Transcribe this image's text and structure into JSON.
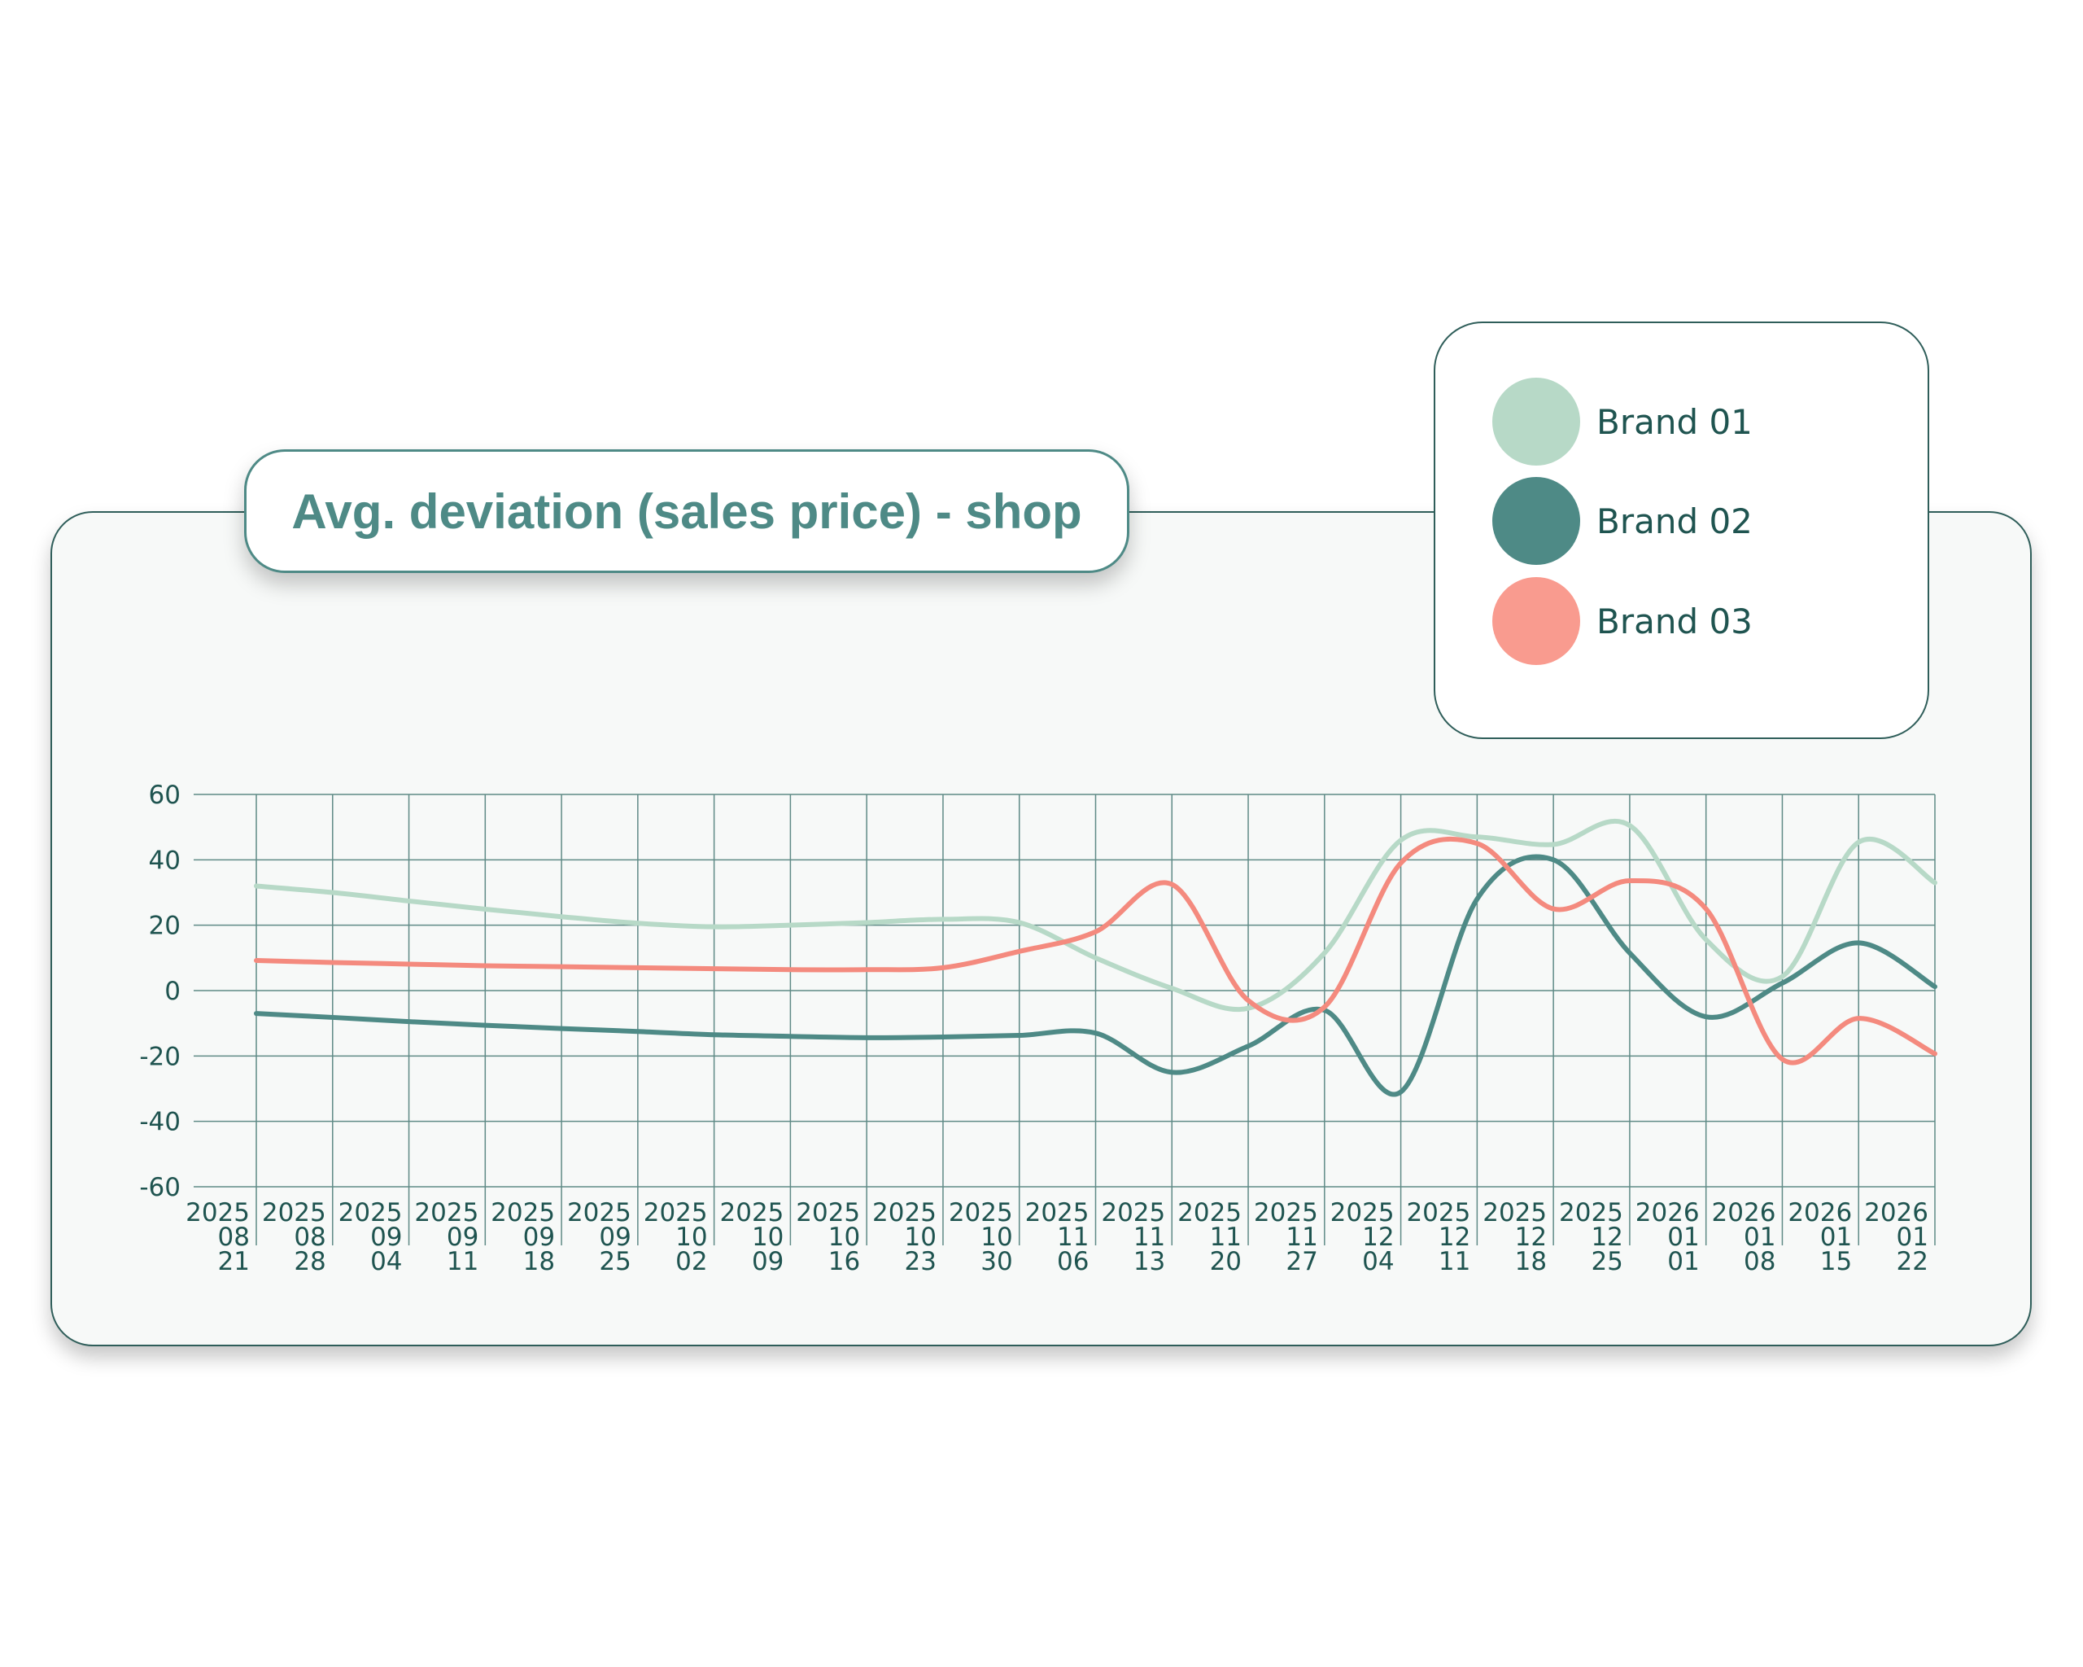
{
  "chart_data": {
    "type": "line",
    "title": "Avg. deviation (sales price) - shop",
    "xlabel": "",
    "ylabel": "",
    "ylim": [
      -60,
      60
    ],
    "yticks": [
      "60",
      "40",
      "20",
      "0",
      "-20",
      "-40",
      "-60"
    ],
    "grid": true,
    "legend_placement": "top-right",
    "x": [
      "2025-08-21",
      "2025-08-28",
      "2025-09-04",
      "2025-09-11",
      "2025-09-18",
      "2025-09-25",
      "2025-10-02",
      "2025-10-09",
      "2025-10-16",
      "2025-10-23",
      "2025-10-30",
      "2025-11-06",
      "2025-11-13",
      "2025-11-20",
      "2025-11-27",
      "2025-12-04",
      "2025-12-11",
      "2025-12-18",
      "2025-12-25",
      "2026-01-01",
      "2026-01-08",
      "2026-01-15",
      "2026-01-22"
    ],
    "x_tick_labels": [
      [
        "2025",
        "08",
        "21"
      ],
      [
        "2025",
        "08",
        "28"
      ],
      [
        "2025",
        "09",
        "04"
      ],
      [
        "2025",
        "09",
        "11"
      ],
      [
        "2025",
        "09",
        "18"
      ],
      [
        "2025",
        "09",
        "25"
      ],
      [
        "2025",
        "10",
        "02"
      ],
      [
        "2025",
        "10",
        "09"
      ],
      [
        "2025",
        "10",
        "16"
      ],
      [
        "2025",
        "10",
        "23"
      ],
      [
        "2025",
        "10",
        "30"
      ],
      [
        "2025",
        "11",
        "06"
      ],
      [
        "2025",
        "11",
        "13"
      ],
      [
        "2025",
        "11",
        "20"
      ],
      [
        "2025",
        "11",
        "27"
      ],
      [
        "2025",
        "12",
        "04"
      ],
      [
        "2025",
        "12",
        "11"
      ],
      [
        "2025",
        "12",
        "18"
      ],
      [
        "2025",
        "12",
        "25"
      ],
      [
        "2026",
        "01",
        "01"
      ],
      [
        "2026",
        "01",
        "08"
      ],
      [
        "2026",
        "01",
        "15"
      ],
      [
        "2026",
        "01",
        "22"
      ]
    ],
    "series": [
      {
        "name": "Brand 01",
        "color": "#b7d9c7",
        "values": [
          32,
          30,
          27.4,
          24.9,
          22.6,
          20.6,
          19.5,
          20,
          20.8,
          21.8,
          20.8,
          10,
          0.7,
          -5.4,
          11.5,
          46,
          47,
          44.7,
          50.5,
          15.6,
          4.3,
          45.4,
          33
        ]
      },
      {
        "name": "Brand 02",
        "color": "#4e8a86",
        "values": [
          -7,
          -8.2,
          -9.5,
          -10.6,
          -11.6,
          -12.5,
          -13.5,
          -14,
          -14.4,
          -14.2,
          -13.7,
          -13,
          -25,
          -17,
          -6,
          -31,
          28,
          40,
          11.5,
          -8,
          2.3,
          14.6,
          1.2
        ]
      },
      {
        "name": "Brand 03",
        "color": "#f48a7e",
        "values": [
          9.2,
          8.6,
          8.1,
          7.6,
          7.3,
          7,
          6.7,
          6.4,
          6.4,
          7,
          12,
          18,
          32.5,
          -3,
          -5,
          39,
          45,
          25,
          33.6,
          25,
          -21,
          -8.5,
          -19.3
        ]
      }
    ]
  },
  "legend": {
    "items": [
      {
        "label": "Brand 01",
        "color": "#b7d9c7"
      },
      {
        "label": "Brand 02",
        "color": "#4e8a86"
      },
      {
        "label": "Brand 03",
        "color": "#f99b8f"
      }
    ]
  }
}
